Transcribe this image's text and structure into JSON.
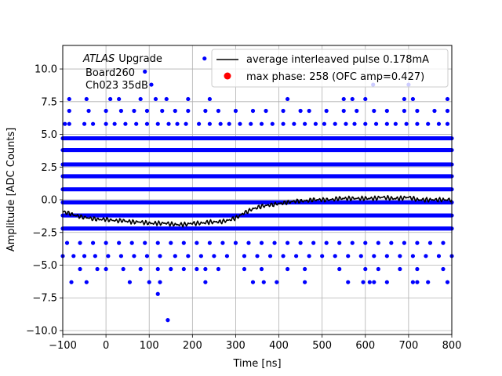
{
  "chart_data": {
    "type": "scatter",
    "xlabel": "Time [ns]",
    "ylabel": "Amplitude [ADC Counts]",
    "xlim": [
      -100,
      800
    ],
    "ylim": [
      -10.3,
      11.8
    ],
    "xticks": [
      "−100",
      "0",
      "100",
      "200",
      "300",
      "400",
      "500",
      "600",
      "700",
      "800"
    ],
    "xtick_values": [
      -100,
      0,
      100,
      200,
      300,
      400,
      500,
      600,
      700,
      800
    ],
    "yticks": [
      "−10.0",
      "−7.5",
      "−5.0",
      "−2.5",
      "0.0",
      "2.5",
      "5.0",
      "7.5",
      "10.0"
    ],
    "ytick_values": [
      -10,
      -7.5,
      -5,
      -2.5,
      0,
      2.5,
      5,
      7.5,
      10
    ],
    "grid": true,
    "legend_position": "upper-right",
    "annotation": {
      "experiment": "ATLAS",
      "label": "Upgrade",
      "board": "Board260",
      "channel": "Ch023 35dB"
    },
    "series": [
      {
        "name": "average interleaved pulse 0.178mA",
        "kind": "line",
        "color": "#000000",
        "x": [
          -100,
          -80,
          -60,
          -40,
          -20,
          0,
          20,
          40,
          60,
          80,
          100,
          120,
          140,
          160,
          180,
          200,
          220,
          240,
          260,
          280,
          300,
          320,
          340,
          360,
          380,
          400,
          420,
          440,
          460,
          480,
          500,
          520,
          540,
          560,
          580,
          600,
          620,
          640,
          660,
          680,
          700,
          720,
          740,
          760,
          780,
          800
        ],
        "y": [
          -0.9,
          -1.1,
          -1.3,
          -1.4,
          -1.5,
          -1.5,
          -1.6,
          -1.6,
          -1.7,
          -1.7,
          -1.8,
          -1.8,
          -1.8,
          -1.9,
          -1.9,
          -1.8,
          -1.8,
          -1.7,
          -1.7,
          -1.6,
          -1.4,
          -1.0,
          -0.7,
          -0.5,
          -0.4,
          -0.3,
          -0.2,
          -0.1,
          -0.1,
          0.0,
          0.0,
          0.0,
          0.1,
          0.1,
          0.1,
          0.1,
          0.1,
          0.2,
          0.1,
          0.1,
          0.2,
          0.0,
          0.0,
          0.0,
          0.0,
          0.0
        ]
      },
      {
        "name": "max phase: 258 (OFC amp=0.427)",
        "kind": "points",
        "color": "#ff0000",
        "x": [],
        "y": []
      },
      {
        "name": "",
        "kind": "samples",
        "color": "#0000ff",
        "dense_levels": [
          -2.2,
          -1.2,
          -0.2,
          0.8,
          1.8,
          2.7,
          3.8,
          4.7
        ],
        "sparse_levels": [
          {
            "y": 5.8,
            "xs": [
              -95,
              -85,
              -50,
              -30,
              0,
              20,
              45,
              70,
              95,
              120,
              145,
              165,
              185,
              215,
              240,
              265,
              285,
              310,
              335,
              360,
              385,
              410,
              435,
              460,
              485,
              505,
              530,
              555,
              575,
              600,
              625,
              650,
              670,
              695,
              720,
              745,
              770,
              790
            ]
          },
          {
            "y": 6.8,
            "xs": [
              -85,
              -40,
              0,
              35,
              65,
              95,
              130,
              160,
              190,
              230,
              260,
              300,
              340,
              370,
              410,
              450,
              470,
              510,
              550,
              580,
              620,
              650,
              690,
              720,
              760,
              790
            ]
          },
          {
            "y": 7.7,
            "xs": [
              -85,
              -45,
              10,
              30,
              80,
              115,
              140,
              190,
              240,
              420,
              550,
              570,
              600,
              690,
              710,
              790
            ]
          },
          {
            "y": -3.3,
            "xs": [
              -90,
              -60,
              -30,
              0,
              30,
              60,
              90,
              120,
              150,
              180,
              210,
              240,
              270,
              300,
              330,
              360,
              390,
              420,
              450,
              480,
              510,
              540,
              570,
              600,
              630,
              660,
              690,
              720,
              750,
              780
            ]
          },
          {
            "y": -4.3,
            "xs": [
              -100,
              -75,
              -50,
              -25,
              5,
              35,
              65,
              95,
              125,
              160,
              190,
              220,
              250,
              280,
              320,
              350,
              380,
              410,
              440,
              470,
              500,
              530,
              560,
              590,
              620,
              650,
              680,
              710,
              740,
              770,
              800
            ]
          },
          {
            "y": -5.3,
            "xs": [
              -60,
              -20,
              0,
              40,
              80,
              120,
              150,
              180,
              210,
              230,
              260,
              320,
              360,
              420,
              460,
              540,
              600,
              630,
              680,
              720,
              780
            ]
          },
          {
            "y": -6.3,
            "xs": [
              -80,
              -45,
              55,
              100,
              125,
              230,
              340,
              365,
              395,
              460,
              560,
              595,
              610,
              620,
              650,
              710,
              720,
              745,
              790
            ]
          }
        ],
        "outliers": [
          {
            "x": 90,
            "y": 9.8
          },
          {
            "x": 105,
            "y": 8.8
          },
          {
            "x": 228,
            "y": 10.8
          },
          {
            "x": 618,
            "y": 8.8
          },
          {
            "x": 700,
            "y": 8.8
          },
          {
            "x": 120,
            "y": -7.2
          },
          {
            "x": 143,
            "y": -9.2
          }
        ]
      }
    ]
  }
}
